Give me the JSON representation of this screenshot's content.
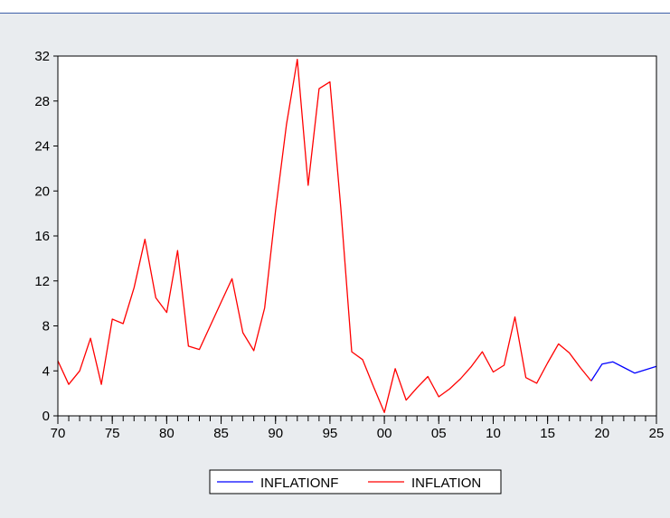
{
  "chart_data": {
    "type": "line",
    "title": "",
    "xlabel": "",
    "ylabel": "",
    "xlim": [
      1970,
      2025
    ],
    "ylim": [
      0,
      32
    ],
    "y_ticks": [
      0,
      4,
      8,
      12,
      16,
      20,
      24,
      28,
      32
    ],
    "x_ticks": [
      {
        "value": 1970,
        "label": "70"
      },
      {
        "value": 1975,
        "label": "75"
      },
      {
        "value": 1980,
        "label": "80"
      },
      {
        "value": 1985,
        "label": "85"
      },
      {
        "value": 1990,
        "label": "90"
      },
      {
        "value": 1995,
        "label": "95"
      },
      {
        "value": 2000,
        "label": "00"
      },
      {
        "value": 2005,
        "label": "05"
      },
      {
        "value": 2010,
        "label": "10"
      },
      {
        "value": 2015,
        "label": "15"
      },
      {
        "value": 2020,
        "label": "20"
      },
      {
        "value": 2025,
        "label": "25"
      }
    ],
    "grid": false,
    "legend_position": "bottom-center",
    "series": [
      {
        "name": "INFLATIONF",
        "color": "#0000ff",
        "x": [
          2019,
          2020,
          2021,
          2022,
          2023,
          2024,
          2025
        ],
        "values": [
          3.1,
          4.6,
          4.8,
          4.3,
          3.8,
          4.1,
          4.4
        ]
      },
      {
        "name": "INFLATION",
        "color": "#ff0000",
        "x": [
          1970,
          1971,
          1972,
          1973,
          1974,
          1975,
          1976,
          1977,
          1978,
          1979,
          1980,
          1981,
          1982,
          1983,
          1984,
          1985,
          1986,
          1987,
          1988,
          1989,
          1990,
          1991,
          1992,
          1993,
          1994,
          1995,
          1996,
          1997,
          1998,
          1999,
          2000,
          2001,
          2002,
          2003,
          2004,
          2005,
          2006,
          2007,
          2008,
          2009,
          2010,
          2011,
          2012,
          2013,
          2014,
          2015,
          2016,
          2017,
          2018,
          2019
        ],
        "values": [
          4.9,
          2.8,
          4.0,
          6.9,
          2.8,
          8.6,
          8.2,
          11.4,
          15.7,
          10.5,
          9.2,
          14.7,
          6.2,
          5.9,
          8.0,
          10.1,
          12.2,
          7.4,
          5.8,
          9.6,
          18.2,
          25.9,
          31.7,
          20.5,
          29.1,
          29.7,
          18.5,
          5.7,
          5.0,
          2.6,
          0.3,
          4.2,
          1.4,
          2.5,
          3.5,
          1.7,
          2.4,
          3.3,
          4.4,
          5.7,
          3.9,
          4.5,
          8.8,
          3.4,
          2.9,
          4.7,
          6.4,
          5.6,
          4.3,
          3.1
        ]
      }
    ]
  }
}
